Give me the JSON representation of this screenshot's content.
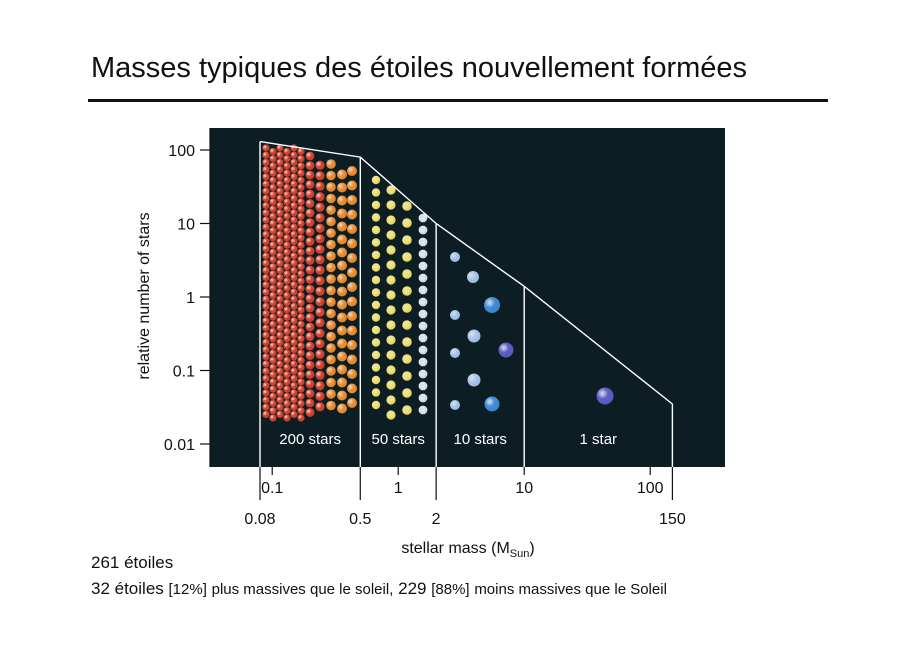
{
  "slide": {
    "title": "Masses typiques des étoiles nouvellement formées",
    "total_line": "261 étoiles",
    "detail": {
      "massive_count": "32 étoiles",
      "massive_pct": "[12%]",
      "massive_text": "plus massives que le soleil,",
      "less_count": "229",
      "less_pct": "[88%]",
      "less_text": "moins massives que le Soleil"
    }
  },
  "chart_data": {
    "type": "diagram",
    "xlabel": "stellar mass (M",
    "xlabel_sub": "Sun",
    "xlabel_close": ")",
    "ylabel": "relative number of stars",
    "y_scale": "log",
    "x_scale": "log",
    "y_ticks": [
      {
        "value": 100,
        "label": "100"
      },
      {
        "value": 10,
        "label": "10"
      },
      {
        "value": 1,
        "label": "1"
      },
      {
        "value": 0.1,
        "label": "0.1"
      },
      {
        "value": 0.01,
        "label": "0.01"
      }
    ],
    "x_ticks_upper": [
      {
        "value": 0.1,
        "label": "0.1"
      },
      {
        "value": 1,
        "label": "1"
      },
      {
        "value": 10,
        "label": "10"
      },
      {
        "value": 100,
        "label": "100"
      }
    ],
    "x_ticks_lower": [
      {
        "value": 0.08,
        "label": "0.08"
      },
      {
        "value": 0.5,
        "label": "0.5"
      },
      {
        "value": 2,
        "label": "2"
      },
      {
        "value": 150,
        "label": "150"
      }
    ],
    "mass_function": [
      {
        "mass": 0.08,
        "number": 130
      },
      {
        "mass": 0.5,
        "number": 80
      },
      {
        "mass": 2,
        "number": 10
      },
      {
        "mass": 10,
        "number": 1.4
      },
      {
        "mass": 150,
        "number": 0.035
      }
    ],
    "bins": [
      {
        "range": [
          0.08,
          0.5
        ],
        "label": "200 stars"
      },
      {
        "range": [
          0.5,
          2
        ],
        "label": "50 stars"
      },
      {
        "range": [
          2,
          10
        ],
        "label": "10 stars"
      },
      {
        "range": [
          10,
          150
        ],
        "label": "1 star"
      }
    ],
    "colors": {
      "background": "#0d1d24",
      "line": "#ffffff",
      "red_star": "#d8432c",
      "orange_star": "#f0902f",
      "yellow_star": "#f4e46a",
      "white_star": "#dde6f2",
      "light_blue_star": "#a9c8ee",
      "blue_star": "#3f8fdc",
      "violet_star": "#5e5fc8"
    }
  }
}
